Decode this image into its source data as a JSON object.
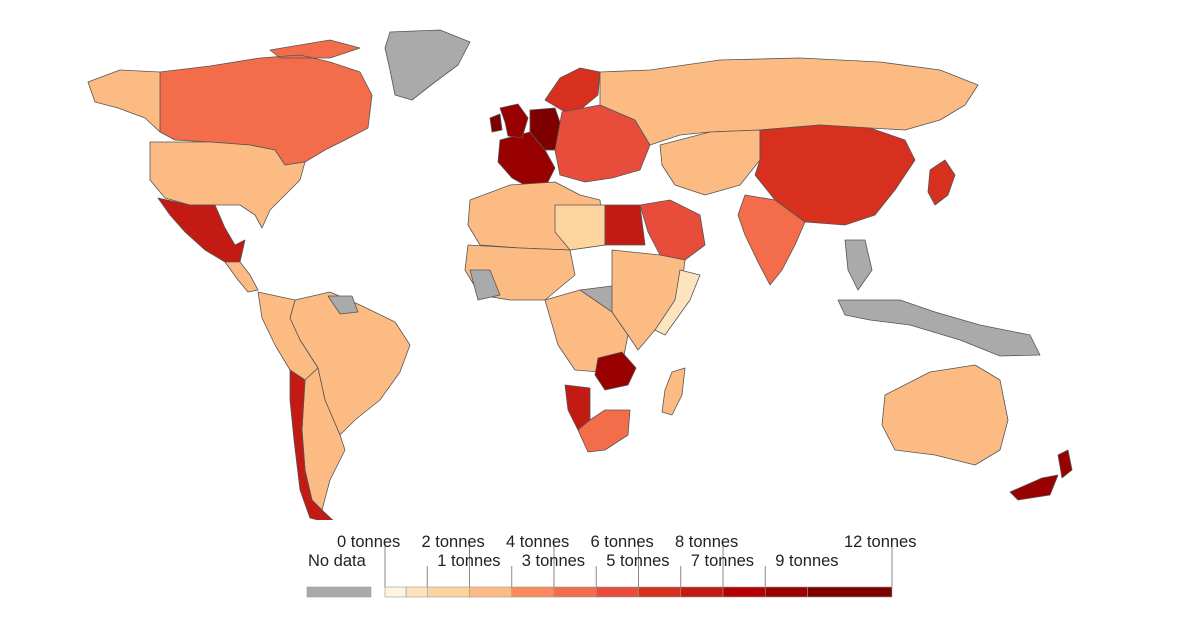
{
  "legend": {
    "no_data_label": "No data",
    "no_data_color": "#aaaaaa",
    "upper_labels": [
      "0 tonnes",
      "2 tonnes",
      "4 tonnes",
      "6 tonnes",
      "8 tonnes",
      "12 tonnes"
    ],
    "lower_labels": [
      "1 tonnes",
      "3 tonnes",
      "5 tonnes",
      "7 tonnes",
      "9 tonnes"
    ],
    "bins": [
      {
        "from": 0,
        "to": 0.5,
        "color": "#fff2e0"
      },
      {
        "from": 0.5,
        "to": 1,
        "color": "#fee3bf"
      },
      {
        "from": 1,
        "to": 2,
        "color": "#fdd49e"
      },
      {
        "from": 2,
        "to": 3,
        "color": "#fdbb84"
      },
      {
        "from": 3,
        "to": 4,
        "color": "#fc8d59"
      },
      {
        "from": 4,
        "to": 5,
        "color": "#f46d4b"
      },
      {
        "from": 5,
        "to": 6,
        "color": "#e84d3c"
      },
      {
        "from": 6,
        "to": 7,
        "color": "#d7301f"
      },
      {
        "from": 7,
        "to": 8,
        "color": "#c31a14"
      },
      {
        "from": 8,
        "to": 9,
        "color": "#b30000"
      },
      {
        "from": 9,
        "to": 10,
        "color": "#990000"
      },
      {
        "from": 10,
        "to": 12,
        "color": "#7f0000"
      }
    ]
  },
  "regions": [
    {
      "name": "Canada",
      "value": 4
    },
    {
      "name": "United States",
      "value": 2.5
    },
    {
      "name": "Alaska",
      "value": 2.5
    },
    {
      "name": "Greenland",
      "value": null
    },
    {
      "name": "Mexico",
      "value": 7
    },
    {
      "name": "Central America",
      "value": 2
    },
    {
      "name": "Brazil",
      "value": 2.5
    },
    {
      "name": "Andean countries",
      "value": 2
    },
    {
      "name": "Argentina",
      "value": 2.5
    },
    {
      "name": "Chile",
      "value": 7
    },
    {
      "name": "Guianas",
      "value": null
    },
    {
      "name": "Western Europe",
      "value": 9
    },
    {
      "name": "Germany",
      "value": 10
    },
    {
      "name": "United Kingdom",
      "value": 9
    },
    {
      "name": "Ireland",
      "value": 10
    },
    {
      "name": "Scandinavia",
      "value": 6
    },
    {
      "name": "Eastern Europe",
      "value": 5
    },
    {
      "name": "Russia",
      "value": 2.5
    },
    {
      "name": "Central Asia",
      "value": 2
    },
    {
      "name": "China",
      "value": 6
    },
    {
      "name": "India",
      "value": 4
    },
    {
      "name": "Japan",
      "value": 6
    },
    {
      "name": "Southeast Asia",
      "value": null
    },
    {
      "name": "Australia",
      "value": 2.5
    },
    {
      "name": "New Zealand",
      "value": 9
    },
    {
      "name": "North Africa",
      "value": 2
    },
    {
      "name": "Libya",
      "value": 1
    },
    {
      "name": "Egypt",
      "value": 7
    },
    {
      "name": "Saudi Arabia",
      "value": 5
    },
    {
      "name": "West Africa",
      "value": 2
    },
    {
      "name": "Sahel gaps",
      "value": null
    },
    {
      "name": "Central Africa",
      "value": 2
    },
    {
      "name": "East Africa",
      "value": 2
    },
    {
      "name": "Somalia",
      "value": 0.5
    },
    {
      "name": "Zambia",
      "value": 9
    },
    {
      "name": "Namibia",
      "value": 7
    },
    {
      "name": "South Africa",
      "value": 4
    },
    {
      "name": "Madagascar",
      "value": 2
    }
  ]
}
